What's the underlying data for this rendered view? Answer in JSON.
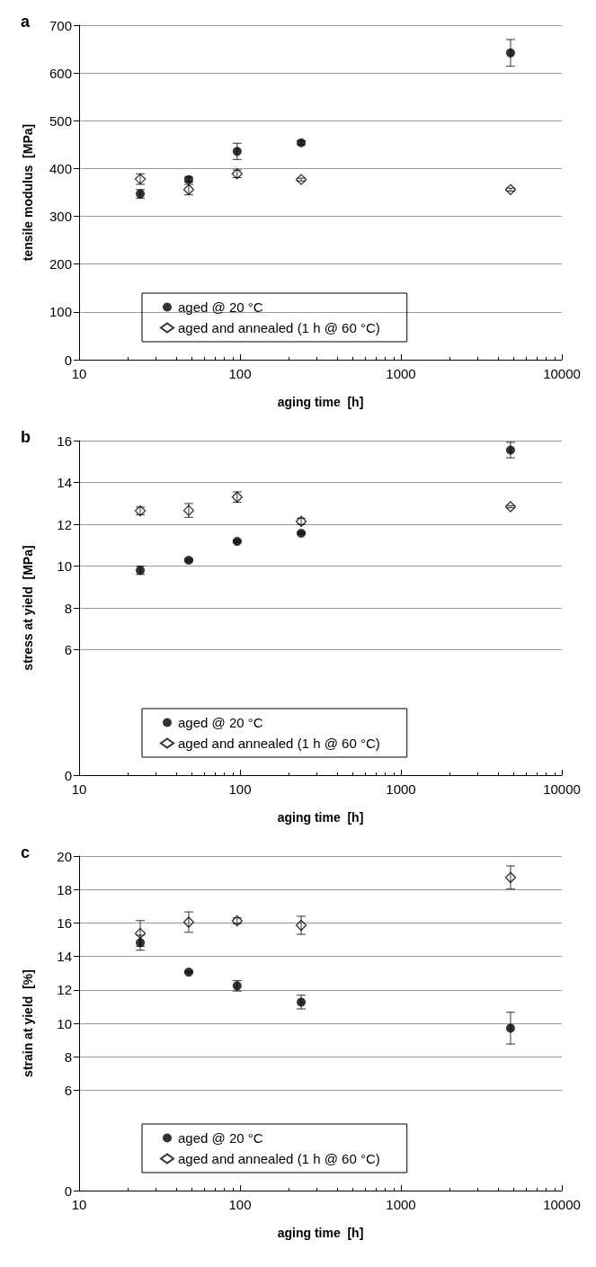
{
  "chart_data": [
    {
      "type": "scatter",
      "title": "a",
      "xlabel": "aging time  [h]",
      "ylabel": "tensile modulus  [MPa]",
      "log": "x",
      "grid": "y",
      "legend": "bottom",
      "xlim": [
        10,
        10000
      ],
      "xticks": [
        10,
        100,
        1000,
        10000
      ],
      "ylim": [
        0,
        700
      ],
      "yticks": [
        0,
        100,
        200,
        300,
        400,
        500,
        600,
        700
      ],
      "x": [
        24,
        48,
        96,
        240,
        4800
      ],
      "series": [
        {
          "name": "aged @ 20 °C",
          "color": "#000000",
          "marker": "circle",
          "values": [
            347,
            377,
            436,
            454,
            642
          ],
          "errors": [
            9,
            5,
            17,
            4,
            28
          ]
        },
        {
          "name": "aged and annealed (1 h @ 60 °C)",
          "color": "#000000",
          "marker": "diamond",
          "values": [
            378,
            356,
            389,
            377,
            356
          ],
          "errors": [
            11,
            11,
            8,
            3,
            3
          ]
        }
      ]
    },
    {
      "type": "scatter",
      "title": "b",
      "xlabel": "aging time  [h]",
      "ylabel": "stress at yield  [MPa]",
      "log": "x",
      "grid": "y",
      "legend": "bottom",
      "xlim": [
        10,
        10000
      ],
      "xticks": [
        10,
        100,
        1000,
        10000
      ],
      "ylim": [
        0,
        16
      ],
      "yticks": [
        0,
        6,
        8,
        10,
        12,
        14,
        16
      ],
      "x": [
        24,
        48,
        96,
        240,
        4800
      ],
      "series": [
        {
          "name": "aged @ 20 °C",
          "color": "#000000",
          "marker": "circle",
          "values": [
            9.8,
            10.28,
            11.18,
            11.57,
            15.55
          ],
          "errors": [
            0.2,
            0.05,
            0.05,
            0.05,
            0.37
          ]
        },
        {
          "name": "aged and annealed (1 h @ 60 °C)",
          "color": "#000000",
          "marker": "diamond",
          "values": [
            12.64,
            12.66,
            13.3,
            12.14,
            12.84
          ],
          "errors": [
            0.18,
            0.33,
            0.25,
            0.15,
            0.05
          ]
        }
      ]
    },
    {
      "type": "scatter",
      "title": "c",
      "xlabel": "aging time  [h]",
      "ylabel": "strain at yield  [%]",
      "log": "x",
      "grid": "y",
      "legend": "bottom",
      "xlim": [
        10,
        10000
      ],
      "xticks": [
        10,
        100,
        1000,
        10000
      ],
      "ylim": [
        0,
        20
      ],
      "yticks": [
        0,
        6,
        8,
        10,
        12,
        14,
        16,
        18,
        20
      ],
      "x": [
        24,
        48,
        96,
        240,
        4800
      ],
      "series": [
        {
          "name": "aged @ 20 °C",
          "color": "#000000",
          "marker": "circle",
          "values": [
            14.82,
            13.06,
            12.24,
            11.27,
            9.71
          ],
          "errors": [
            0.45,
            0.05,
            0.31,
            0.41,
            0.95
          ]
        },
        {
          "name": "aged and annealed (1 h @ 60 °C)",
          "color": "#000000",
          "marker": "diamond",
          "values": [
            15.37,
            16.05,
            16.13,
            15.86,
            18.72
          ],
          "errors": [
            0.77,
            0.61,
            0.17,
            0.54,
            0.69
          ]
        }
      ]
    }
  ]
}
